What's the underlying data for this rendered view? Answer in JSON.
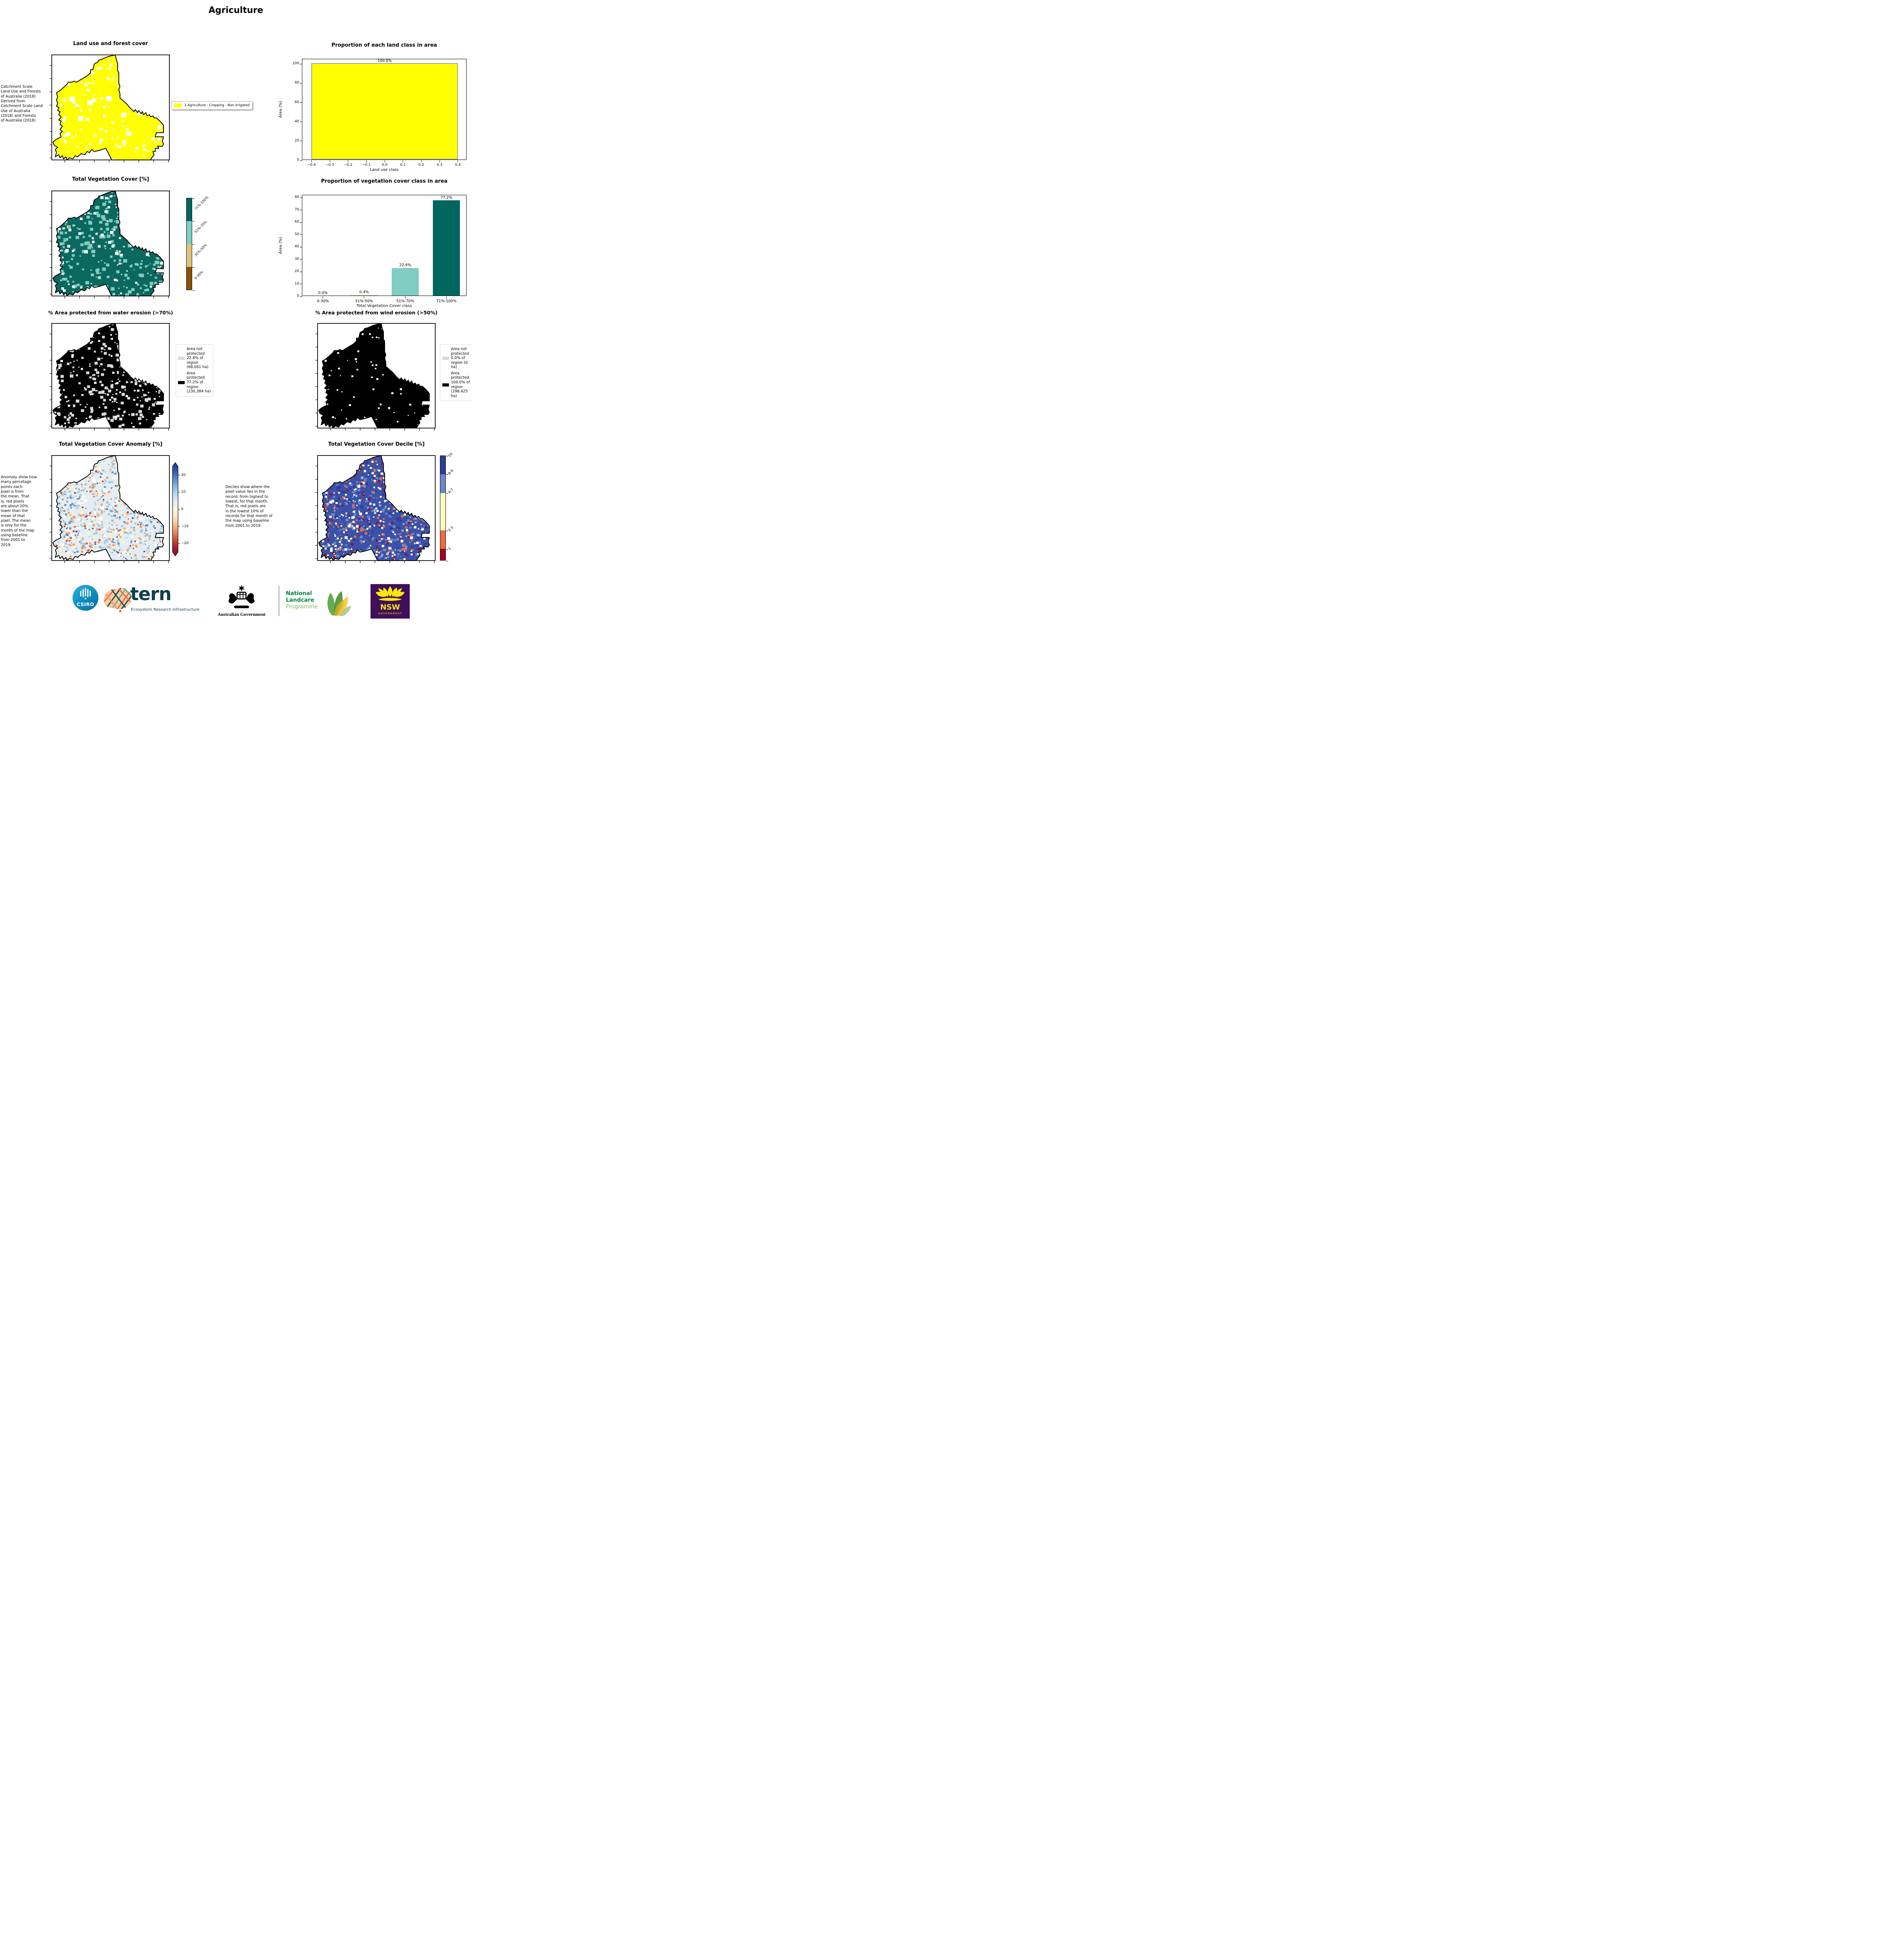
{
  "page": {
    "title": "Agriculture"
  },
  "row1": {
    "map_title": "Land use and forest cover",
    "side_note": " Catchment Scale\nLand Use and Forests\nof Australia (2018)\nDerived from\nCatchment Scale Land\nUse of Australia\n(2018) and Forests\nof Australia (2018)",
    "legend": {
      "swatch_color": "#ffff00",
      "label": "1 Agriculture - Cropping - Non-irrigated"
    }
  },
  "row2": {
    "map_title": "Total Vegetation Cover [%]",
    "colorbar": {
      "labels": [
        "71%-100%",
        "51%-70%",
        "31%-50%",
        "0-30%"
      ],
      "colors": [
        "#01665e",
        "#80cdc1",
        "#dfc27d",
        "#8c510a"
      ]
    }
  },
  "row3": {
    "left_title": "% Area protected from water erosion (>70%)",
    "right_title": "% Area protected from wind erosion (>50%)",
    "water_legend": [
      {
        "color": "#d9d9d9",
        "label": "Area not protected 22.8% of region (68,041 ha)"
      },
      {
        "color": "#000000",
        "label": "Area protected 77.2% of region (230,384 ha)"
      }
    ],
    "wind_legend": [
      {
        "color": "#d9d9d9",
        "label": "Area not protected 0.0% of region (0 ha)"
      },
      {
        "color": "#000000",
        "label": "Area protected 100.0% of region (298,425 ha)"
      }
    ]
  },
  "row4": {
    "left_title": "Total Vegetation Cover Anomaly [%]",
    "right_title": "Total Vegetation Cover Decile [%]",
    "anomaly_note": "Anomaly show how\nmany percetage\npoints each\npixel is from\nthe mean. That\nis, red pixels\nare about 20%\nlower than the\nmean of that\npixel. The mean\nis only for the\nmonth of the map\nusing baseline\nfrom 2001 to\n2019.",
    "decile_note": "Deciles show where the\npixel value lies in the\nrecord, from highest to\nlowest, for that month.\nThat is, red pixels are\nin the lowest 10% of\nrecords for that month of\nthe map using baseline\nfrom 2001 to 2019.",
    "anomaly_cbar": {
      "tick_values": [
        20,
        10,
        0,
        -10,
        -20
      ],
      "tick_labels": [
        "20",
        "10",
        "0",
        "−10",
        "−20"
      ],
      "stops": [
        "#1f338c",
        "#2f55a8",
        "#5585c1",
        "#86b5d9",
        "#b8d7e8",
        "#e2eef2",
        "#f8f6e8",
        "#fbe7c8",
        "#f7bd92",
        "#ea8660",
        "#cc4937",
        "#a31c2c",
        "#8c0d24"
      ]
    },
    "decile_cbar": {
      "segments": [
        {
          "label": "10",
          "color": "#2e3d96",
          "h": 17.6
        },
        {
          "label": "8-9",
          "color": "#6d87c6",
          "h": 18.0
        },
        {
          "label": "4-7",
          "color": "#ffffbe",
          "h": 36.0
        },
        {
          "label": "2-3",
          "color": "#ed6b43",
          "h": 17.6
        },
        {
          "label": "1",
          "color": "#a50026",
          "h": 10.8
        }
      ]
    }
  },
  "chart_data": [
    {
      "type": "bar",
      "title": "Proportion of each land class in area",
      "xlabel": "Land use class",
      "ylabel": "Area (%)",
      "ylim": [
        0,
        100
      ],
      "ytick_values": [
        0,
        20,
        40,
        60,
        80,
        100
      ],
      "ytick_labels": [
        "0",
        "20",
        "40",
        "60",
        "80",
        "100"
      ],
      "xtick_values": [
        -0.4,
        -0.3,
        -0.2,
        -0.1,
        0.0,
        0.1,
        0.2,
        0.3,
        0.4
      ],
      "xtick_labels": [
        "−0.4",
        "−0.3",
        "−0.2",
        "−0.1",
        "0.0",
        "0.1",
        "0.2",
        "0.3",
        "0.4"
      ],
      "bars": [
        {
          "label": "1 Agriculture - Cropping - Non-irrigated",
          "value": 100.0,
          "annotation": "100.0%",
          "color": "#ffff00",
          "edge": "#9e9e9e",
          "x_from": -0.4,
          "x_to": 0.4
        }
      ]
    },
    {
      "type": "bar",
      "title": "Proportion of vegetation cover class in area",
      "xlabel": "Total Vegetation Cover class",
      "ylabel": "Area (%)",
      "ylim": [
        0,
        80
      ],
      "ytick_values": [
        0,
        10,
        20,
        30,
        40,
        50,
        60,
        70,
        80
      ],
      "ytick_labels": [
        "0",
        "10",
        "20",
        "30",
        "40",
        "50",
        "60",
        "70",
        "80"
      ],
      "categories": [
        "0-30%",
        "31%-50%",
        "51%-70%",
        "71%-100%"
      ],
      "values": [
        0.0,
        0.4,
        22.4,
        77.2
      ],
      "annotations": [
        "0.0%",
        "0.4%",
        "22.4%",
        "77.2%"
      ],
      "colors": [
        "#8c510a",
        "#dfc27d",
        "#80cdc1",
        "#01665e"
      ]
    }
  ],
  "maps": {
    "land_use": {
      "base": "#ffff00",
      "speckles": [
        [
          "#ffffff",
          150,
          1,
          3.2
        ],
        [
          "#ffffff",
          18,
          3,
          5
        ]
      ]
    },
    "veg_cover": {
      "base": "#0b685e",
      "speckles": [
        [
          "#7fccc0",
          300,
          1,
          3.4
        ],
        [
          "#ffffff",
          110,
          1,
          3
        ],
        [
          "#dfc27d",
          16,
          0.8,
          1.5
        ],
        [
          "#8c510a",
          3,
          0.8,
          1.2
        ]
      ]
    },
    "water": {
      "base": "#000000",
      "speckles": [
        [
          "#d9d9d9",
          340,
          1,
          3
        ],
        [
          "#ffffff",
          55,
          1,
          2.2
        ]
      ]
    },
    "wind": {
      "base": "#000000",
      "speckles": [
        [
          "#ffffff",
          100,
          0.8,
          1.9
        ]
      ]
    },
    "anomaly": {
      "base": "#e3edf3",
      "speckles": [
        [
          "#faf0c8",
          420,
          0.8,
          2.2
        ],
        [
          "#a9cde3",
          420,
          0.8,
          2.4
        ],
        [
          "#5e97c8",
          170,
          0.8,
          2
        ],
        [
          "#2e52a2",
          45,
          0.8,
          1.4
        ],
        [
          "#ffffff",
          150,
          1,
          3
        ],
        [
          "#f3a06a",
          190,
          0.8,
          2.2
        ],
        [
          "#cf4e33",
          90,
          0.8,
          1.8
        ],
        [
          "#a31c2c",
          40,
          0.8,
          1.5
        ]
      ]
    },
    "decile": {
      "base": "#3c51a8",
      "speckles": [
        [
          "#6d87c6",
          300,
          1,
          2.6
        ],
        [
          "#2e3d96",
          200,
          1,
          2.6
        ],
        [
          "#ffffbe",
          270,
          0.8,
          2.2
        ],
        [
          "#ed6b43",
          140,
          0.8,
          2.2
        ],
        [
          "#a50026",
          110,
          0.8,
          2.2
        ],
        [
          "#ffffff",
          90,
          1,
          2.6
        ],
        [
          "#93a8d9",
          70,
          0.8,
          2
        ]
      ]
    }
  },
  "footer": {
    "csiro": "CSIRO",
    "tern": "tern",
    "tern_sub": "Ecosystem Research Infrastructure",
    "aus_gov": "Australian Government",
    "landcare_1": "National",
    "landcare_2": "Landcare",
    "landcare_3": "Programme",
    "nsw": "NSW",
    "nsw_sub": "GOVERNMENT"
  }
}
